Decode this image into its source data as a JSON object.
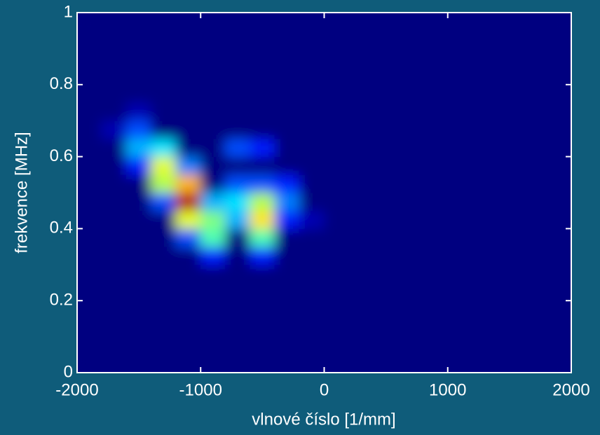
{
  "chart_data": {
    "type": "heatmap",
    "xlabel": "vlnové číslo [1/mm]",
    "ylabel": "frekvence [MHz]",
    "x": [
      -1900,
      -1700,
      -1500,
      -1300,
      -1100,
      -900,
      -700,
      -500,
      -300,
      -100,
      100,
      300,
      500,
      700,
      900,
      1100,
      1300,
      1500,
      1700,
      1900
    ],
    "y": [
      0.025,
      0.075,
      0.125,
      0.175,
      0.225,
      0.275,
      0.325,
      0.375,
      0.425,
      0.475,
      0.525,
      0.575,
      0.625,
      0.675,
      0.725,
      0.775,
      0.825,
      0.875,
      0.925,
      0.975
    ],
    "z": [
      [
        0,
        0,
        0,
        0,
        0,
        0,
        0,
        0,
        0,
        0,
        0,
        0,
        0,
        0,
        0,
        0,
        0,
        0,
        0,
        0
      ],
      [
        0,
        0,
        0,
        0,
        0,
        0,
        0,
        0,
        0,
        0,
        0,
        0,
        0,
        0,
        0,
        0,
        0,
        0,
        0,
        0
      ],
      [
        0,
        0,
        0,
        0,
        0,
        0,
        0,
        0,
        0,
        0,
        0,
        0,
        0,
        0,
        0,
        0,
        0,
        0,
        0,
        0
      ],
      [
        0,
        0,
        0,
        0,
        0,
        0,
        0,
        0,
        0,
        0,
        0,
        0,
        0,
        0,
        0,
        0,
        0,
        0,
        0,
        0
      ],
      [
        0,
        0,
        0,
        0,
        0,
        0,
        0,
        0,
        0,
        0,
        0,
        0,
        0,
        0,
        0,
        0,
        0,
        0,
        0,
        0
      ],
      [
        0,
        0,
        0,
        0,
        0,
        0,
        0,
        0,
        0,
        0,
        0,
        0,
        0,
        0,
        0,
        0,
        0,
        0,
        0,
        0
      ],
      [
        0,
        0,
        0,
        0,
        0,
        0.15,
        0,
        0.15,
        0,
        0,
        0,
        0,
        0,
        0,
        0,
        0,
        0,
        0,
        0,
        0
      ],
      [
        0,
        0,
        0,
        0,
        0.2,
        0.45,
        0,
        0.45,
        0,
        0,
        0,
        0,
        0,
        0,
        0,
        0,
        0,
        0,
        0,
        0
      ],
      [
        0,
        0,
        0,
        0,
        0.6,
        0.5,
        0.3,
        0.65,
        0.15,
        0.05,
        0,
        0,
        0,
        0,
        0,
        0,
        0,
        0,
        0,
        0
      ],
      [
        0,
        0,
        0,
        0.2,
        0.95,
        0.3,
        0.35,
        0.55,
        0.25,
        0,
        0,
        0,
        0,
        0,
        0,
        0,
        0,
        0,
        0,
        0
      ],
      [
        0,
        0,
        0,
        0.55,
        0.7,
        0,
        0.2,
        0.2,
        0.15,
        0,
        0,
        0,
        0,
        0,
        0,
        0,
        0,
        0,
        0,
        0
      ],
      [
        0,
        0,
        0.15,
        0.6,
        0.25,
        0,
        0,
        0,
        0,
        0,
        0,
        0,
        0,
        0,
        0,
        0,
        0,
        0,
        0,
        0
      ],
      [
        0,
        0,
        0.3,
        0.35,
        0,
        0,
        0.2,
        0.15,
        0,
        0,
        0,
        0,
        0,
        0,
        0,
        0,
        0,
        0,
        0,
        0
      ],
      [
        0,
        0.05,
        0.2,
        0,
        0,
        0,
        0,
        0,
        0,
        0,
        0,
        0,
        0,
        0,
        0,
        0,
        0,
        0,
        0,
        0
      ],
      [
        0,
        0,
        0.05,
        0,
        0,
        0,
        0,
        0,
        0,
        0,
        0,
        0,
        0,
        0,
        0,
        0,
        0,
        0,
        0,
        0
      ],
      [
        0,
        0,
        0,
        0,
        0,
        0,
        0,
        0,
        0,
        0,
        0,
        0,
        0,
        0,
        0,
        0,
        0,
        0,
        0,
        0
      ],
      [
        0,
        0,
        0,
        0,
        0,
        0,
        0,
        0,
        0,
        0,
        0,
        0,
        0,
        0,
        0,
        0,
        0,
        0,
        0,
        0
      ],
      [
        0,
        0,
        0,
        0,
        0,
        0,
        0,
        0,
        0,
        0,
        0,
        0,
        0,
        0,
        0,
        0,
        0,
        0,
        0,
        0
      ],
      [
        0,
        0,
        0,
        0,
        0,
        0,
        0,
        0,
        0,
        0,
        0,
        0,
        0,
        0,
        0,
        0,
        0,
        0,
        0,
        0
      ],
      [
        0,
        0,
        0,
        0,
        0,
        0,
        0,
        0,
        0,
        0,
        0,
        0,
        0,
        0,
        0,
        0,
        0,
        0,
        0,
        0
      ]
    ],
    "colormap": "jet",
    "clim": [
      0,
      1
    ],
    "xlim": [
      -2000,
      2000
    ],
    "xticks": [
      -2000,
      -1000,
      0,
      1000,
      2000
    ],
    "ylim": [
      0,
      1
    ],
    "yticks": [
      0,
      0.2,
      0.4,
      0.6,
      0.8,
      1
    ],
    "grid": false
  }
}
